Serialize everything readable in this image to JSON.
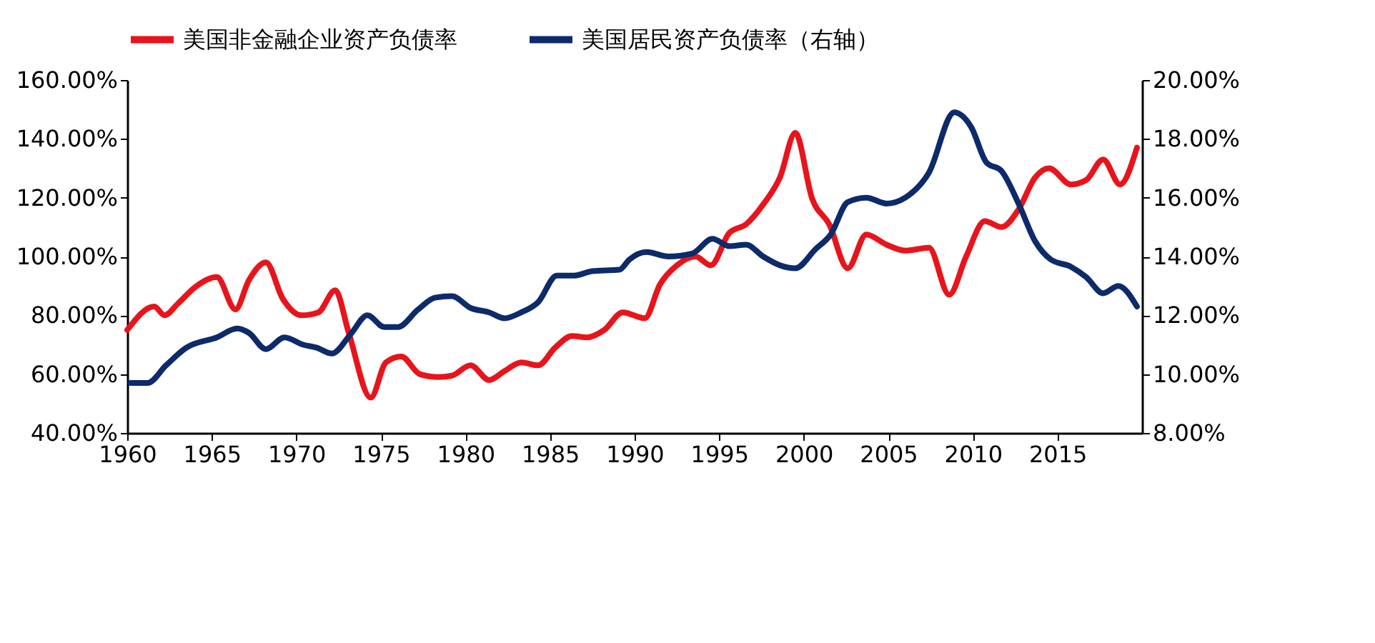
{
  "chart_data": {
    "type": "line",
    "xlim": [
      1960,
      2020
    ],
    "xticks": [
      1960,
      1965,
      1970,
      1975,
      1980,
      1985,
      1990,
      1995,
      2000,
      2005,
      2010,
      2015
    ],
    "ylim": [
      40,
      160
    ],
    "yticks": [
      {
        "value": 40,
        "label": "40.00%"
      },
      {
        "value": 60,
        "label": "60.00%"
      },
      {
        "value": 80,
        "label": "80.00%"
      },
      {
        "value": 100,
        "label": "100.00%"
      },
      {
        "value": 120,
        "label": "120.00%"
      },
      {
        "value": 140,
        "label": "140.00%"
      },
      {
        "value": 160,
        "label": "160.00%"
      }
    ],
    "y2lim": [
      8,
      20
    ],
    "y2ticks": [
      {
        "value": 8,
        "label": "8.00%"
      },
      {
        "value": 10,
        "label": "10.00%"
      },
      {
        "value": 12,
        "label": "12.00%"
      },
      {
        "value": 14,
        "label": "14.00%"
      },
      {
        "value": 16,
        "label": "16.00%"
      },
      {
        "value": 18,
        "label": "18.00%"
      },
      {
        "value": 20,
        "label": "20.00%"
      }
    ],
    "grid": false,
    "legend": "top",
    "line_style": "solid",
    "marker": "none",
    "series": [
      {
        "name": "美国非金融企业资产负债率",
        "color": "#e8141b",
        "x": [
          1960,
          1961.6,
          1962.2,
          1963,
          1964,
          1965.3,
          1966.4,
          1967.2,
          1968.2,
          1969.2,
          1970.3,
          1971.3,
          1972.3,
          1973.1,
          1974.4,
          1975.3,
          1976.2,
          1977.3,
          1978.4,
          1979.2,
          1980.3,
          1981.4,
          1982.3,
          1983.3,
          1984.3,
          1985.3,
          1986.3,
          1987.2,
          1988.2,
          1989.3,
          1990.6,
          1991.5,
          1992.5,
          1993.6,
          1994.5,
          1995.6,
          1996.6,
          1997.6,
          1998.6,
          1999.5,
          2000.5,
          2001.5,
          2002.6,
          2003.7,
          2004.9,
          2006,
          2007.4,
          2008.6,
          2009.6,
          2010.7,
          2011.7,
          2012.7,
          2013.7,
          2014.5,
          2015.8,
          2016.7,
          2017.7,
          2018.7,
          2019.7
        ],
        "values": [
          75,
          83,
          80,
          84,
          89.5,
          93,
          82,
          92,
          98,
          85.6,
          80,
          81,
          88.5,
          74,
          52,
          64,
          66,
          60,
          59,
          59.5,
          63,
          58,
          61,
          64,
          63,
          69,
          73,
          72.5,
          75,
          81,
          79,
          90.5,
          97,
          100,
          97,
          108,
          111,
          117.7,
          127,
          142,
          119.6,
          111,
          96,
          107.5,
          104,
          102,
          103,
          87,
          100,
          112,
          110,
          116,
          127,
          130,
          124.5,
          126,
          133,
          124.5,
          137
        ]
      },
      {
        "name": "美国居民资产负债率（右轴）",
        "color": "#0d2a6b",
        "axis": "y2",
        "x": [
          1960.2,
          1961.2,
          1962.3,
          1963.5,
          1965.3,
          1966.5,
          1967.2,
          1968.2,
          1969.3,
          1970.4,
          1971.2,
          1972.1,
          1973.2,
          1974.2,
          1975.2,
          1976,
          1977.2,
          1978.2,
          1979.2,
          1980.3,
          1981.4,
          1982.3,
          1983.3,
          1984.3,
          1985.4,
          1986.4,
          1987.5,
          1989.1,
          1989.7,
          1990.7,
          1992,
          1993.4,
          1994.6,
          1995.6,
          1996.6,
          1997.6,
          1998.6,
          1999.5,
          2000.7,
          2001.6,
          2002.6,
          2003.7,
          2004.9,
          2006,
          2007.4,
          2008.9,
          2009.9,
          2010.8,
          2011.7,
          2012.7,
          2013.7,
          2014.6,
          2015.8,
          2016.7,
          2017.7,
          2018.6,
          2019.7
        ],
        "values": [
          9.7,
          9.7,
          10.3,
          10.9,
          11.25,
          11.55,
          11.4,
          10.85,
          11.25,
          11.0,
          10.9,
          10.7,
          11.35,
          12.0,
          11.6,
          11.6,
          12.2,
          12.6,
          12.65,
          12.25,
          12.1,
          11.9,
          12.1,
          12.45,
          13.35,
          13.35,
          13.5,
          13.55,
          13.9,
          14.15,
          14.0,
          14.1,
          14.6,
          14.35,
          14.4,
          14.0,
          13.7,
          13.6,
          14.25,
          14.75,
          15.85,
          16.0,
          15.8,
          16.0,
          16.85,
          18.9,
          18.4,
          17.2,
          16.9,
          15.8,
          14.5,
          13.9,
          13.65,
          13.3,
          12.75,
          13.0,
          12.3
        ]
      }
    ]
  }
}
